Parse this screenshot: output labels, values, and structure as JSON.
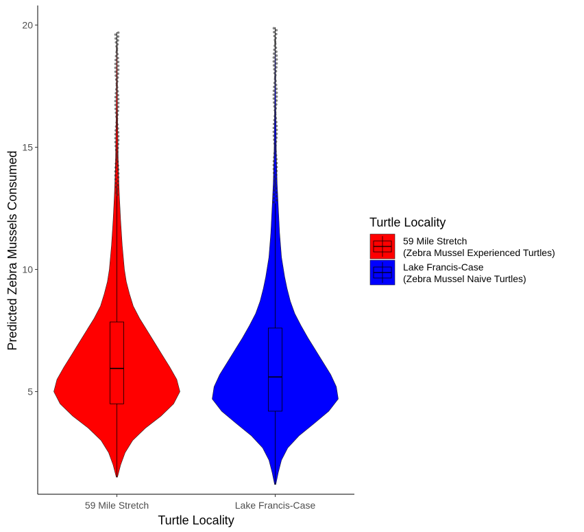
{
  "chart_data": {
    "type": "violin",
    "xlabel": "Turtle Locality",
    "ylabel": "Predicted Zebra Mussels Consumed",
    "categories": [
      "59 Mile Stretch",
      "Lake Francis-Case"
    ],
    "yticks": [
      5,
      10,
      15,
      20
    ],
    "ylim": [
      0.8,
      20.8
    ],
    "grid": false,
    "legend": {
      "title": "Turtle Locality",
      "placement": "right",
      "entries": [
        {
          "line1": "59 Mile Stretch",
          "line2": " (Zebra Mussel Experienced Turtles)",
          "color": "#ff0000"
        },
        {
          "line1": "Lake Francis-Case",
          "line2": " (Zebra Mussel Naive Turtles)",
          "color": "#0000ff"
        }
      ]
    },
    "series": [
      {
        "category": "59 Mile Stretch",
        "color": "#ff0000",
        "min": 1.5,
        "q1": 4.5,
        "median": 5.95,
        "q3": 7.85,
        "max": 19.7,
        "whisker_high": 13.0,
        "density": [
          [
            1.5,
            0.01
          ],
          [
            2.0,
            0.06
          ],
          [
            2.5,
            0.13
          ],
          [
            3.0,
            0.25
          ],
          [
            3.5,
            0.45
          ],
          [
            4.0,
            0.7
          ],
          [
            4.5,
            0.9
          ],
          [
            5.0,
            1.0
          ],
          [
            5.5,
            0.95
          ],
          [
            6.0,
            0.84
          ],
          [
            6.5,
            0.72
          ],
          [
            7.0,
            0.6
          ],
          [
            7.5,
            0.48
          ],
          [
            8.0,
            0.36
          ],
          [
            8.5,
            0.26
          ],
          [
            9.0,
            0.2
          ],
          [
            9.5,
            0.15
          ],
          [
            10.0,
            0.12
          ],
          [
            11.0,
            0.085
          ],
          [
            12.0,
            0.06
          ],
          [
            13.0,
            0.04
          ],
          [
            14.0,
            0.025
          ],
          [
            15.0,
            0.017
          ],
          [
            16.0,
            0.012
          ],
          [
            17.0,
            0.009
          ],
          [
            18.0,
            0.006
          ],
          [
            19.0,
            0.004
          ],
          [
            19.7,
            0.002
          ]
        ]
      },
      {
        "category": "Lake Francis-Case",
        "color": "#0000ff",
        "min": 1.2,
        "q1": 4.2,
        "median": 5.6,
        "q3": 7.6,
        "max": 19.9,
        "whisker_high": 12.7,
        "density": [
          [
            1.2,
            0.01
          ],
          [
            1.7,
            0.05
          ],
          [
            2.2,
            0.1
          ],
          [
            2.7,
            0.2
          ],
          [
            3.2,
            0.38
          ],
          [
            3.7,
            0.62
          ],
          [
            4.2,
            0.85
          ],
          [
            4.7,
            1.0
          ],
          [
            5.2,
            0.97
          ],
          [
            5.7,
            0.88
          ],
          [
            6.2,
            0.76
          ],
          [
            6.7,
            0.64
          ],
          [
            7.2,
            0.52
          ],
          [
            7.7,
            0.41
          ],
          [
            8.2,
            0.31
          ],
          [
            8.7,
            0.24
          ],
          [
            9.2,
            0.19
          ],
          [
            9.7,
            0.15
          ],
          [
            10.5,
            0.1
          ],
          [
            11.5,
            0.07
          ],
          [
            12.5,
            0.05
          ],
          [
            13.5,
            0.032
          ],
          [
            14.5,
            0.02
          ],
          [
            15.5,
            0.014
          ],
          [
            16.5,
            0.01
          ],
          [
            17.5,
            0.007
          ],
          [
            18.5,
            0.005
          ],
          [
            19.2,
            0.003
          ],
          [
            19.9,
            0.002
          ]
        ]
      }
    ]
  }
}
